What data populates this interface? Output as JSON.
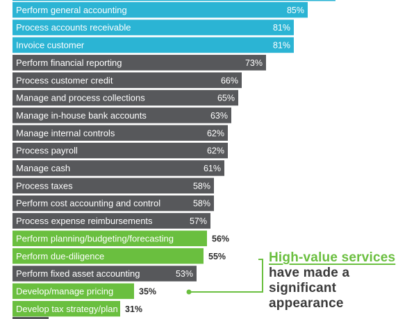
{
  "chart_data": {
    "type": "bar",
    "orientation": "horizontal",
    "xlim": [
      0,
      100
    ],
    "categories": [
      "Perform general accounting",
      "Process accounts receivable",
      "Invoice customer",
      "Perform financial reporting",
      "Process customer credit",
      "Manage and process collections",
      "Manage in-house bank accounts",
      "Manage internal controls",
      "Process payroll",
      "Manage cash",
      "Process taxes",
      "Perform cost accounting and control",
      "Process expense reimbursements",
      "Perform planning/budgeting/forecasting",
      "Perform due-diligence",
      "Perform fixed asset accounting",
      "Develop/manage pricing",
      "Develop tax strategy/plan"
    ],
    "values": [
      85,
      81,
      81,
      73,
      66,
      65,
      63,
      62,
      62,
      61,
      58,
      58,
      57,
      56,
      55,
      53,
      35,
      31
    ],
    "value_labels": [
      "85%",
      "81%",
      "81%",
      "73%",
      "66%",
      "65%",
      "63%",
      "62%",
      "62%",
      "61%",
      "58%",
      "58%",
      "57%",
      "56%",
      "55%",
      "53%",
      "35%",
      "31%"
    ],
    "bar_groups": [
      "top",
      "top",
      "top",
      "standard",
      "standard",
      "standard",
      "standard",
      "standard",
      "standard",
      "standard",
      "standard",
      "standard",
      "standard",
      "high-value",
      "high-value",
      "standard",
      "high-value",
      "high-value"
    ],
    "colors": {
      "top": "#2bb4d4",
      "standard": "#57585b",
      "high-value": "#6abf3f",
      "label_dark": "#2b2b2b",
      "label_muted": "#8a8a8a",
      "label_on_bar": "#ffffff"
    }
  },
  "callout": {
    "highlight": "High-value services",
    "rest": " have made a significant appearance"
  }
}
